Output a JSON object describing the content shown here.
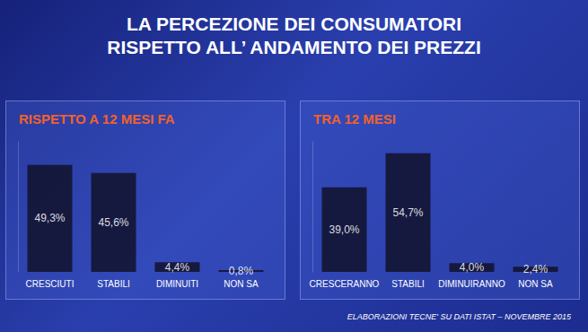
{
  "title": "LA PERCEZIONE DEI CONSUMATORI\nRISPETTO ALL’ ANDAMENTO DEI PREZZI",
  "source": "ELABORAZIONI TECNE' SU DATI ISTAT – NOVEMBRE 2015",
  "chart_data": [
    {
      "type": "bar",
      "title": "RISPETTO A 12 MESI FA",
      "categories": [
        "CRESCIUTI",
        "STABILI",
        "DIMINUITI",
        "NON SA"
      ],
      "values": [
        49.3,
        45.6,
        4.4,
        0.8
      ],
      "value_labels": [
        "49,3%",
        "45,6%",
        "4,4%",
        "0,8%"
      ],
      "color": "#12122a",
      "ylim": [
        0,
        60
      ],
      "grid": false,
      "data_labels": true,
      "tick_labels": "x"
    },
    {
      "type": "bar",
      "title": "TRA 12 MESI",
      "categories": [
        "CRESCERANNO",
        "STABILI",
        "DIMINUIRANNO",
        "NON SA"
      ],
      "values": [
        39.0,
        54.7,
        4.0,
        2.4
      ],
      "value_labels": [
        "39,0%",
        "54,7%",
        "4,0%",
        "2,4%"
      ],
      "color": "#12122a",
      "ylim": [
        0,
        60
      ],
      "grid": false,
      "data_labels": true,
      "tick_labels": "x"
    }
  ]
}
